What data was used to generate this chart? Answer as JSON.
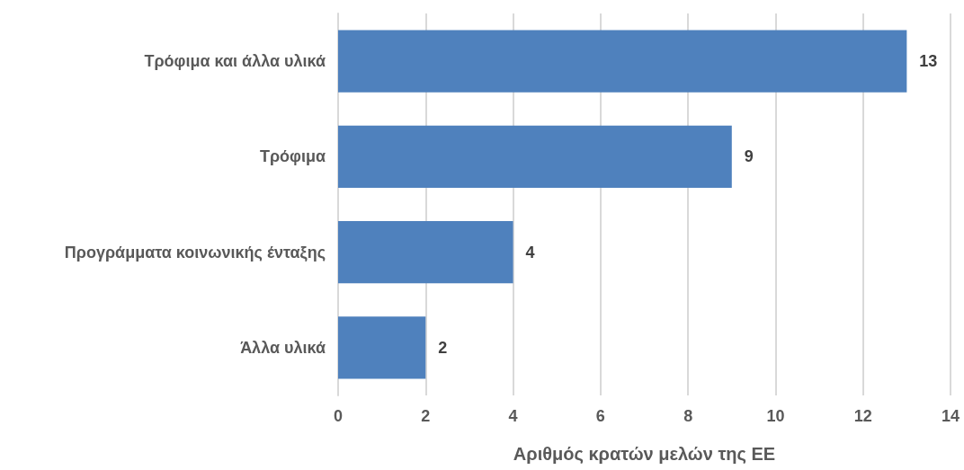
{
  "chart_data": {
    "type": "bar",
    "orientation": "horizontal",
    "xlabel": "Αριθμός κρατών μελών της ΕΕ",
    "categories": [
      "Τρόφιμα και άλλα υλικά",
      "Τρόφιμα",
      "Προγράμματα κοινωνικής ένταξης",
      "Άλλα υλικά"
    ],
    "values": [
      13,
      9,
      4,
      2
    ],
    "color": "#4f81bd",
    "xlim": [
      0,
      14
    ],
    "xticks": [
      0,
      2,
      4,
      6,
      8,
      10,
      12,
      14
    ],
    "grid": "x",
    "data_labels": true
  }
}
